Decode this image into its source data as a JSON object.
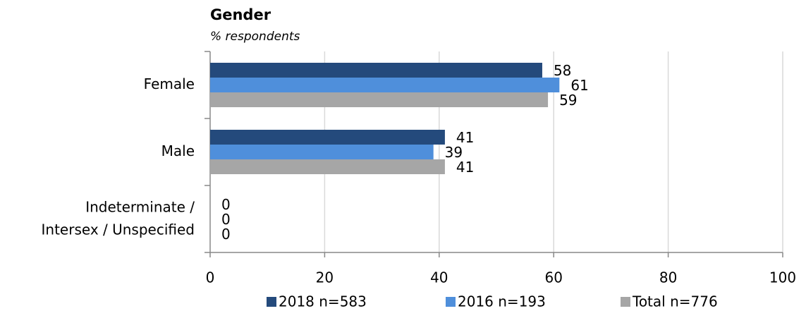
{
  "chart_data": {
    "type": "barh",
    "title": "Gender",
    "subtitle": "% respondents",
    "categories": [
      "Female",
      "Male",
      "Indeterminate /\nIntersex / Unspecified"
    ],
    "series": [
      {
        "name": "2018 n=583",
        "color": "#244a7c",
        "values": [
          58,
          41,
          0
        ]
      },
      {
        "name": "2016 n=193",
        "color": "#4f8fdb",
        "values": [
          61,
          39,
          0
        ]
      },
      {
        "name": "Total n=776",
        "color": "#a6a6a6",
        "values": [
          59,
          41,
          0
        ]
      }
    ],
    "xlim": [
      0,
      100
    ],
    "xticks": [
      0,
      20,
      40,
      60,
      80,
      100
    ],
    "grid": true,
    "legend": "bottom"
  }
}
